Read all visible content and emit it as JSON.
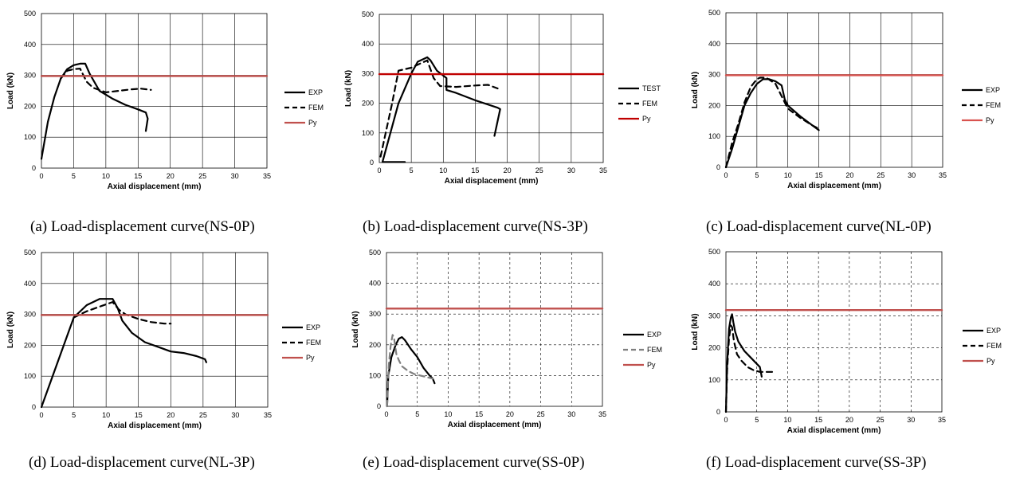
{
  "figure": {
    "captions": [
      "(a)  Load-displacement  curve(NS-0P)",
      "(b)  Load-displacement  curve(NS-3P)",
      "(c)  Load-displacement  curve(NL-0P)",
      "(d)  Load-displacement  curve(NL-3P)",
      "(e)  Load-displacement  curve(SS-0P)",
      "(f)  Load-displacement  curve(SS-3P)"
    ]
  },
  "chart_data": [
    {
      "type": "line",
      "title": "",
      "xlabel": "Axial displacement (mm)",
      "ylabel": "Load (kN)",
      "xlim": [
        0,
        35
      ],
      "ylim": [
        0,
        500
      ],
      "xticks": [
        0,
        5,
        10,
        15,
        20,
        25,
        30,
        35
      ],
      "yticks": [
        0,
        100,
        200,
        300,
        400,
        500
      ],
      "grid": "solid",
      "legend": "right",
      "series": [
        {
          "name": "EXP",
          "style": "solid",
          "color": "#000000",
          "x": [
            0,
            1,
            2,
            3,
            4,
            5,
            6,
            6.8,
            7.5,
            9,
            11,
            13,
            15,
            16.2,
            16.5,
            16.2
          ],
          "y": [
            30,
            150,
            230,
            290,
            320,
            333,
            338,
            338,
            305,
            250,
            225,
            205,
            190,
            180,
            160,
            120
          ]
        },
        {
          "name": "FEM",
          "style": "dashed",
          "color": "#000000",
          "x": [
            3,
            4,
            5,
            6,
            7,
            8,
            10,
            12,
            14,
            15.5,
            17
          ],
          "y": [
            290,
            315,
            320,
            322,
            280,
            260,
            245,
            250,
            255,
            257,
            253
          ]
        },
        {
          "name": "Py",
          "style": "solid",
          "color": "#c0504d",
          "x": [
            0,
            35
          ],
          "y": [
            298,
            298
          ]
        }
      ]
    },
    {
      "type": "line",
      "title": "",
      "xlabel": "Axial displacement (mm)",
      "ylabel": "Load (kN)",
      "xlim": [
        0,
        35
      ],
      "ylim": [
        0,
        500
      ],
      "xticks": [
        0,
        5,
        10,
        15,
        20,
        25,
        30,
        35
      ],
      "yticks": [
        0,
        100,
        200,
        300,
        400,
        500
      ],
      "grid": "solid",
      "legend": "right",
      "series": [
        {
          "name": "TEST",
          "style": "solid",
          "color": "#000000",
          "x": [
            4,
            0.5,
            3,
            5,
            6,
            7,
            7.5,
            8,
            9,
            10.5,
            10.5,
            12,
            15,
            18.5,
            18.9,
            18
          ],
          "y": [
            2,
            2,
            200,
            300,
            340,
            350,
            355,
            345,
            310,
            285,
            245,
            235,
            210,
            185,
            180,
            90
          ]
        },
        {
          "name": "FEM",
          "style": "dashed",
          "color": "#000000",
          "x": [
            0.2,
            1,
            2,
            3,
            5,
            6.5,
            7.5,
            8.5,
            9.5,
            12,
            15,
            17,
            18.5
          ],
          "y": [
            20,
            100,
            200,
            310,
            320,
            335,
            345,
            285,
            258,
            255,
            260,
            262,
            250
          ]
        },
        {
          "name": "Py",
          "style": "solid",
          "color": "#c00000",
          "x": [
            0,
            35
          ],
          "y": [
            298,
            298
          ]
        }
      ]
    },
    {
      "type": "line",
      "title": "",
      "xlabel": "Axial displacement (mm)",
      "ylabel": "Load (kN)",
      "xlim": [
        0,
        35
      ],
      "ylim": [
        0,
        500
      ],
      "xticks": [
        0,
        5,
        10,
        15,
        20,
        25,
        30,
        35
      ],
      "yticks": [
        0,
        100,
        200,
        300,
        400,
        500
      ],
      "grid": "solid",
      "legend": "right",
      "series": [
        {
          "name": "EXP",
          "style": "solid",
          "color": "#000000",
          "x": [
            0,
            1,
            2,
            3,
            4,
            5,
            6,
            7,
            8,
            9,
            9.5,
            10,
            12,
            14,
            15
          ],
          "y": [
            0,
            60,
            130,
            200,
            240,
            270,
            285,
            285,
            278,
            265,
            220,
            200,
            165,
            135,
            120
          ]
        },
        {
          "name": "FEM",
          "style": "dashed",
          "color": "#000000",
          "x": [
            0,
            1,
            2,
            3,
            4,
            5,
            5.5,
            6.5,
            8,
            9,
            10,
            12,
            14,
            15
          ],
          "y": [
            0,
            80,
            140,
            210,
            260,
            285,
            290,
            290,
            270,
            230,
            190,
            160,
            135,
            125
          ]
        },
        {
          "name": "Py",
          "style": "solid",
          "color": "#d9534f",
          "x": [
            0,
            35
          ],
          "y": [
            298,
            298
          ]
        }
      ]
    },
    {
      "type": "line",
      "title": "",
      "xlabel": "Axial displacement (mm)",
      "ylabel": "Load (kN)",
      "xlim": [
        0,
        35
      ],
      "ylim": [
        0,
        500
      ],
      "xticks": [
        0,
        5,
        10,
        15,
        20,
        25,
        30,
        35
      ],
      "yticks": [
        0,
        100,
        200,
        300,
        400,
        500
      ],
      "grid": "solid",
      "legend": "right",
      "series": [
        {
          "name": "EXP",
          "style": "solid",
          "color": "#000000",
          "x": [
            0,
            2.5,
            5,
            7,
            9,
            10.5,
            11,
            11.8,
            12.5,
            14,
            16,
            18,
            20,
            22,
            24,
            25.3,
            25.5
          ],
          "y": [
            0,
            145,
            290,
            330,
            350,
            350,
            350,
            320,
            280,
            240,
            210,
            195,
            180,
            175,
            165,
            155,
            145
          ]
        },
        {
          "name": "FEM",
          "style": "dashed",
          "color": "#000000",
          "x": [
            5,
            7,
            9,
            11,
            12,
            13,
            15,
            17,
            19,
            20
          ],
          "y": [
            290,
            310,
            325,
            340,
            315,
            300,
            285,
            275,
            270,
            270
          ]
        },
        {
          "name": "Py",
          "style": "solid",
          "color": "#c0504d",
          "x": [
            0,
            35
          ],
          "y": [
            298,
            298
          ]
        }
      ]
    },
    {
      "type": "line",
      "title": "",
      "xlabel": "Axial displacement (mm)",
      "ylabel": "Load (kN)",
      "xlim": [
        0,
        35
      ],
      "ylim": [
        0,
        500
      ],
      "xticks": [
        0,
        5,
        10,
        15,
        20,
        25,
        30,
        35
      ],
      "yticks": [
        0,
        100,
        200,
        300,
        400,
        500
      ],
      "grid": "dashed",
      "legend": "right",
      "series": [
        {
          "name": "EXP",
          "style": "solid",
          "color": "#000000",
          "x": [
            0.1,
            0.3,
            0.8,
            1.5,
            2,
            2.5,
            3,
            4,
            5,
            6,
            7,
            7.5,
            7.8
          ],
          "y": [
            0,
            100,
            160,
            200,
            220,
            225,
            215,
            185,
            160,
            125,
            100,
            90,
            75
          ]
        },
        {
          "name": "FEM",
          "style": "dashed",
          "color": "#808080",
          "x": [
            0.1,
            0.2,
            0.4,
            0.7,
            1,
            1.2,
            1.6,
            2,
            2.5,
            3.5,
            4.5,
            5.5,
            6.5,
            7.5
          ],
          "y": [
            0,
            60,
            140,
            200,
            232,
            225,
            170,
            150,
            130,
            115,
            105,
            100,
            95,
            90
          ]
        },
        {
          "name": "Py",
          "style": "solid",
          "color": "#c0504d",
          "x": [
            0,
            35
          ],
          "y": [
            318,
            318
          ]
        }
      ]
    },
    {
      "type": "line",
      "title": "",
      "xlabel": "Axial displacement (mm)",
      "ylabel": "Load (kN)",
      "xlim": [
        0,
        35
      ],
      "ylim": [
        0,
        500
      ],
      "xticks": [
        0,
        5,
        10,
        15,
        20,
        25,
        30,
        35
      ],
      "yticks": [
        0,
        100,
        200,
        300,
        400,
        500
      ],
      "grid": "dashed",
      "legend": "right",
      "series": [
        {
          "name": "EXP",
          "style": "solid",
          "color": "#000000",
          "x": [
            0,
            0.2,
            0.5,
            0.8,
            1,
            1.2,
            1.5,
            2,
            3,
            4,
            5,
            5.5,
            5.8
          ],
          "y": [
            0,
            150,
            260,
            295,
            305,
            280,
            250,
            220,
            190,
            170,
            150,
            140,
            110
          ]
        },
        {
          "name": "FEM",
          "style": "dashed",
          "color": "#000000",
          "x": [
            0,
            0.2,
            0.5,
            0.8,
            1,
            1.3,
            1.8,
            2.5,
            3.5,
            4.5,
            5.5,
            6.5,
            7.5
          ],
          "y": [
            0,
            130,
            230,
            270,
            265,
            220,
            180,
            160,
            140,
            130,
            125,
            125,
            125
          ]
        },
        {
          "name": "Py",
          "style": "solid",
          "color": "#c0504d",
          "x": [
            0,
            35
          ],
          "y": [
            318,
            318
          ]
        }
      ]
    }
  ]
}
